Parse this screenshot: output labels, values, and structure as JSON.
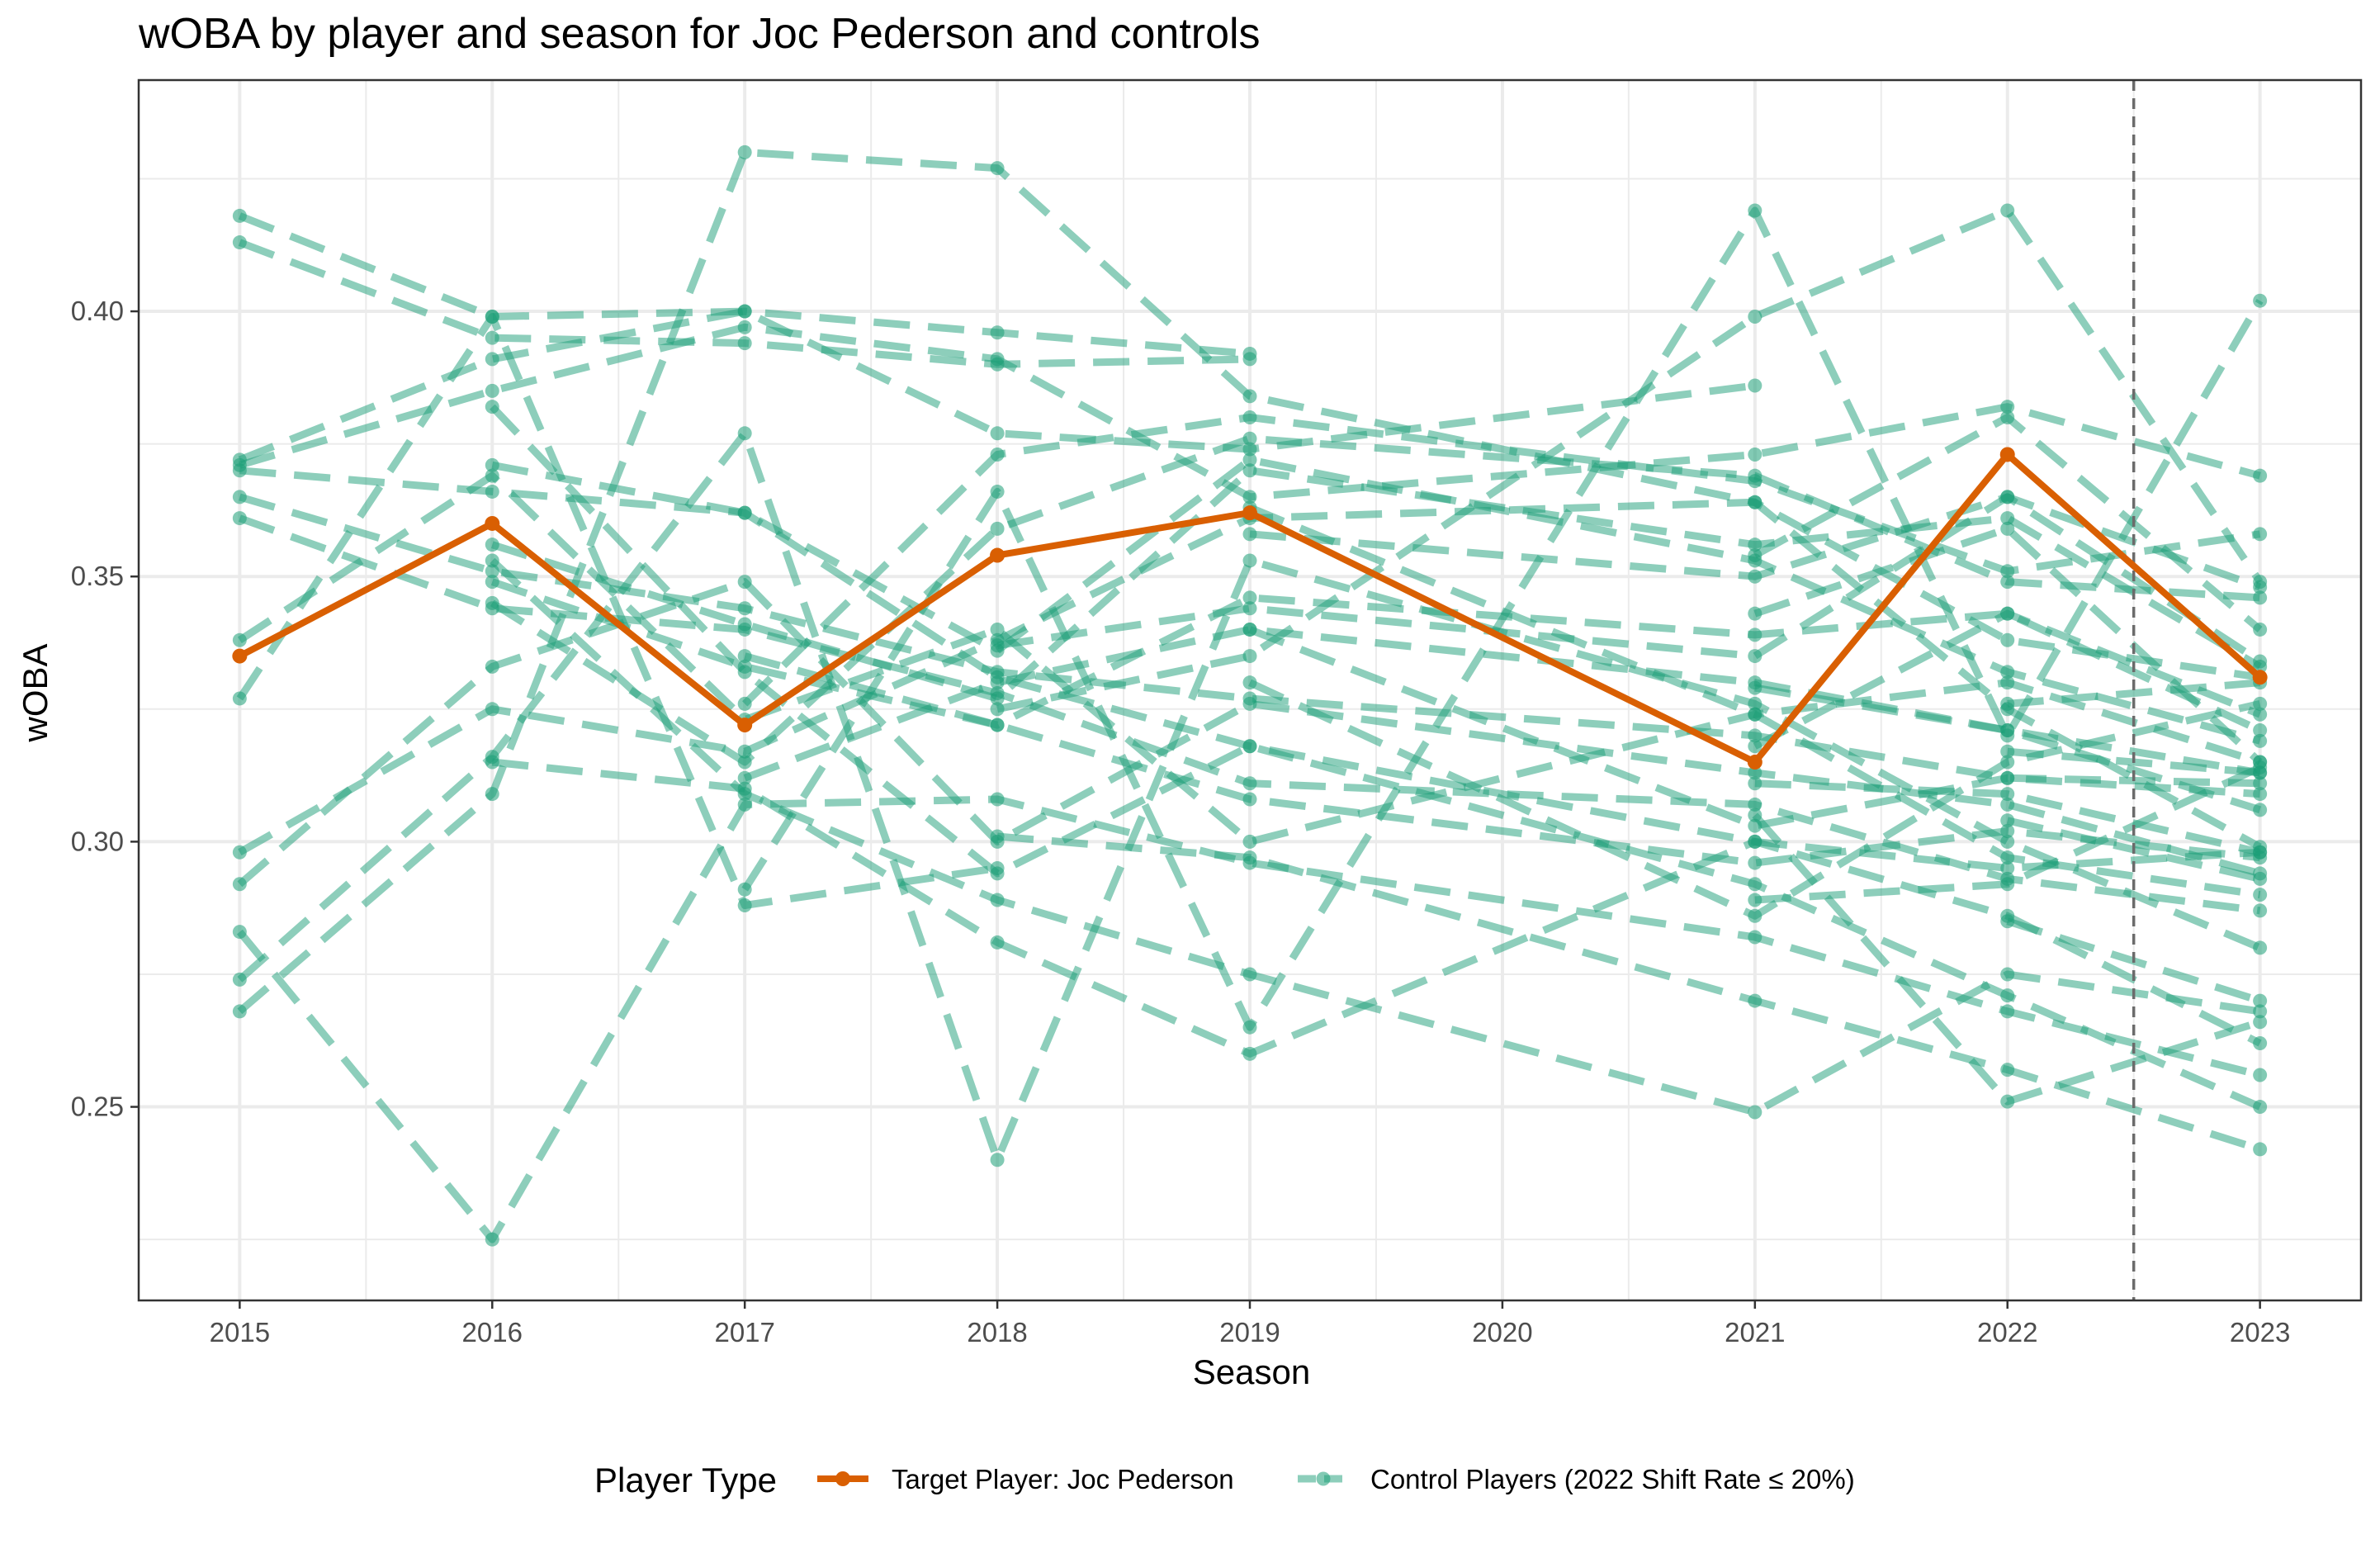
{
  "chart_data": {
    "type": "line",
    "title": "wOBA by player and season for Joc Pederson and controls",
    "xlabel": "Season",
    "ylabel": "wOBA",
    "x_ticks": [
      2015,
      2016,
      2017,
      2018,
      2019,
      2020,
      2021,
      2022,
      2023
    ],
    "y_ticks": [
      0.25,
      0.3,
      0.35,
      0.4
    ],
    "y_tick_labels": [
      "0.25",
      "0.30",
      "0.35",
      "0.40"
    ],
    "xlim": [
      2014.6,
      2023.4
    ],
    "ylim": [
      0.2135,
      0.4436
    ],
    "grid": true,
    "vline_x": 2022.5,
    "legend": {
      "title": "Player Type",
      "position": "bottom",
      "entries": [
        {
          "label": "Target Player: Joc Pederson",
          "color": "#D95F02"
        },
        {
          "label": "Control Players (2022 Shift Rate ≤ 20%)",
          "color": "#1B9E77"
        }
      ]
    },
    "target_series": {
      "name": "Target Player: Joc Pederson",
      "color": "#D95F02",
      "x": [
        2015,
        2016,
        2017,
        2018,
        2019,
        2021,
        2022,
        2023
      ],
      "y": [
        0.335,
        0.36,
        0.322,
        0.354,
        0.362,
        0.315,
        0.373,
        0.331
      ]
    },
    "control_series": {
      "name": "Control Players (2022 Shift Rate ≤ 20%)",
      "color": "#1B9E77",
      "players": [
        {
          "x": [
            2015,
            2016,
            2017,
            2018,
            2019
          ],
          "y": [
            0.418,
            0.399,
            0.4,
            0.396,
            0.392
          ]
        },
        {
          "x": [
            2015,
            2016,
            2017,
            2018,
            2019
          ],
          "y": [
            0.413,
            0.395,
            0.394,
            0.39,
            0.391
          ]
        },
        {
          "x": [
            2015,
            2016,
            2017,
            2018,
            2019,
            2021
          ],
          "y": [
            0.372,
            0.391,
            0.4,
            0.377,
            0.374,
            0.386
          ]
        },
        {
          "x": [
            2015,
            2016,
            2017,
            2018,
            2019,
            2021,
            2022,
            2023
          ],
          "y": [
            0.371,
            0.385,
            0.397,
            0.391,
            0.365,
            0.373,
            0.382,
            0.369
          ]
        },
        {
          "x": [
            2015,
            2016,
            2017,
            2018,
            2019,
            2021,
            2022,
            2023
          ],
          "y": [
            0.37,
            0.366,
            0.362,
            0.331,
            0.318,
            0.3,
            0.295,
            0.298
          ]
        },
        {
          "x": [
            2015,
            2016,
            2017,
            2018,
            2019,
            2021,
            2022,
            2023
          ],
          "y": [
            0.365,
            0.351,
            0.344,
            0.332,
            0.327,
            0.32,
            0.312,
            0.311
          ]
        },
        {
          "x": [
            2015,
            2016,
            2017,
            2018,
            2019,
            2021,
            2022,
            2023
          ],
          "y": [
            0.361,
            0.344,
            0.34,
            0.328,
            0.311,
            0.307,
            0.293,
            0.287
          ]
        },
        {
          "x": [
            2015,
            2016,
            2017,
            2018,
            2019,
            2021,
            2022,
            2023
          ],
          "y": [
            0.338,
            0.369,
            0.323,
            0.34,
            0.3,
            0.324,
            0.33,
            0.315
          ]
        },
        {
          "x": [
            2015,
            2016,
            2017,
            2018
          ],
          "y": [
            0.327,
            0.399,
            0.288,
            0.295
          ]
        },
        {
          "x": [
            2015,
            2016,
            2017,
            2018,
            2019,
            2021,
            2022,
            2023
          ],
          "y": [
            0.298,
            0.325,
            0.317,
            0.338,
            0.361,
            0.364,
            0.338,
            0.331
          ]
        },
        {
          "x": [
            2015,
            2016,
            2017,
            2018,
            2019,
            2021,
            2022,
            2023
          ],
          "y": [
            0.292,
            0.333,
            0.349,
            0.3,
            0.326,
            0.313,
            0.307,
            0.294
          ]
        },
        {
          "x": [
            2015,
            2016,
            2017,
            2018,
            2019,
            2021,
            2022,
            2023
          ],
          "y": [
            0.283,
            0.225,
            0.307,
            0.308,
            0.296,
            0.282,
            0.268,
            0.256
          ]
        },
        {
          "x": [
            2015,
            2016,
            2017,
            2018,
            2019,
            2021,
            2022,
            2023
          ],
          "y": [
            0.274,
            0.316,
            0.377,
            0.24,
            0.353,
            0.326,
            0.3,
            0.28
          ]
        },
        {
          "x": [
            2015,
            2016,
            2017,
            2018,
            2019,
            2021,
            2022,
            2023
          ],
          "y": [
            0.268,
            0.309,
            0.43,
            0.427,
            0.384,
            0.364,
            0.325,
            0.299
          ]
        },
        {
          "x": [
            2016,
            2017,
            2018,
            2019,
            2021,
            2022,
            2023
          ],
          "y": [
            0.371,
            0.362,
            0.336,
            0.372,
            0.353,
            0.332,
            0.319
          ]
        },
        {
          "x": [
            2016,
            2017,
            2018,
            2019,
            2021,
            2022,
            2023
          ],
          "y": [
            0.356,
            0.341,
            0.327,
            0.37,
            0.356,
            0.361,
            0.333
          ]
        },
        {
          "x": [
            2016,
            2017,
            2018,
            2019,
            2021,
            2022,
            2023
          ],
          "y": [
            0.349,
            0.333,
            0.322,
            0.346,
            0.339,
            0.343,
            0.321
          ]
        },
        {
          "x": [
            2016,
            2017,
            2018,
            2019,
            2021,
            2022,
            2023
          ],
          "y": [
            0.353,
            0.309,
            0.289,
            0.275,
            0.249,
            0.275,
            0.268
          ]
        },
        {
          "x": [
            2016,
            2017,
            2018,
            2019,
            2021,
            2022,
            2023
          ],
          "y": [
            0.315,
            0.31,
            0.281,
            0.26,
            0.3,
            0.286,
            0.262
          ]
        },
        {
          "x": [
            2016,
            2017,
            2018,
            2019,
            2021,
            2022,
            2023
          ],
          "y": [
            0.382,
            0.332,
            0.294,
            0.318,
            0.292,
            0.271,
            0.25
          ]
        },
        {
          "x": [
            2016,
            2017,
            2018,
            2019,
            2021,
            2022,
            2023
          ],
          "y": [
            0.345,
            0.315,
            0.359,
            0.376,
            0.369,
            0.349,
            0.346
          ]
        },
        {
          "x": [
            2017,
            2018,
            2019,
            2021,
            2022,
            2023
          ],
          "y": [
            0.291,
            0.366,
            0.265,
            0.419,
            0.32,
            0.402
          ]
        },
        {
          "x": [
            2017,
            2018,
            2019,
            2021,
            2022,
            2023
          ],
          "y": [
            0.326,
            0.373,
            0.38,
            0.368,
            0.351,
            0.358
          ]
        },
        {
          "x": [
            2017,
            2018,
            2019,
            2021,
            2022,
            2023
          ],
          "y": [
            0.312,
            0.33,
            0.34,
            0.33,
            0.321,
            0.313
          ]
        },
        {
          "x": [
            2017,
            2018,
            2019,
            2021,
            2022,
            2023
          ],
          "y": [
            0.335,
            0.322,
            0.308,
            0.296,
            0.302,
            0.297
          ]
        },
        {
          "x": [
            2018,
            2019,
            2021,
            2022,
            2023
          ],
          "y": [
            0.325,
            0.335,
            0.399,
            0.419,
            0.349
          ]
        },
        {
          "x": [
            2018,
            2019,
            2021,
            2022,
            2023
          ],
          "y": [
            0.301,
            0.297,
            0.27,
            0.257,
            0.242
          ]
        },
        {
          "x": [
            2018,
            2019,
            2021,
            2022,
            2023
          ],
          "y": [
            0.337,
            0.344,
            0.335,
            0.365,
            0.334
          ]
        },
        {
          "x": [
            2019,
            2021,
            2022,
            2023
          ],
          "y": [
            0.358,
            0.35,
            0.365,
            0.348
          ]
        },
        {
          "x": [
            2019,
            2021,
            2022,
            2023
          ],
          "y": [
            0.34,
            0.303,
            0.312,
            0.309
          ]
        },
        {
          "x": [
            2019,
            2021,
            2022,
            2023
          ],
          "y": [
            0.363,
            0.324,
            0.297,
            0.29
          ]
        },
        {
          "x": [
            2019,
            2021,
            2022,
            2023
          ],
          "y": [
            0.33,
            0.286,
            0.315,
            0.326
          ]
        },
        {
          "x": [
            2021,
            2022,
            2023
          ],
          "y": [
            0.354,
            0.38,
            0.34
          ]
        },
        {
          "x": [
            2021,
            2022,
            2023
          ],
          "y": [
            0.343,
            0.359,
            0.315
          ]
        },
        {
          "x": [
            2021,
            2022,
            2023
          ],
          "y": [
            0.329,
            0.321,
            0.306
          ]
        },
        {
          "x": [
            2021,
            2022,
            2023
          ],
          "y": [
            0.311,
            0.309,
            0.298
          ]
        },
        {
          "x": [
            2021,
            2022,
            2023
          ],
          "y": [
            0.305,
            0.251,
            0.266
          ]
        },
        {
          "x": [
            2021,
            2022,
            2023
          ],
          "y": [
            0.318,
            0.343,
            0.324
          ]
        },
        {
          "x": [
            2021,
            2022,
            2023
          ],
          "y": [
            0.289,
            0.292,
            0.314
          ]
        },
        {
          "x": [
            2022,
            2023
          ],
          "y": [
            0.326,
            0.33
          ]
        },
        {
          "x": [
            2022,
            2023
          ],
          "y": [
            0.317,
            0.313
          ]
        },
        {
          "x": [
            2022,
            2023
          ],
          "y": [
            0.285,
            0.27
          ]
        },
        {
          "x": [
            2022,
            2023
          ],
          "y": [
            0.304,
            0.293
          ]
        }
      ]
    }
  }
}
